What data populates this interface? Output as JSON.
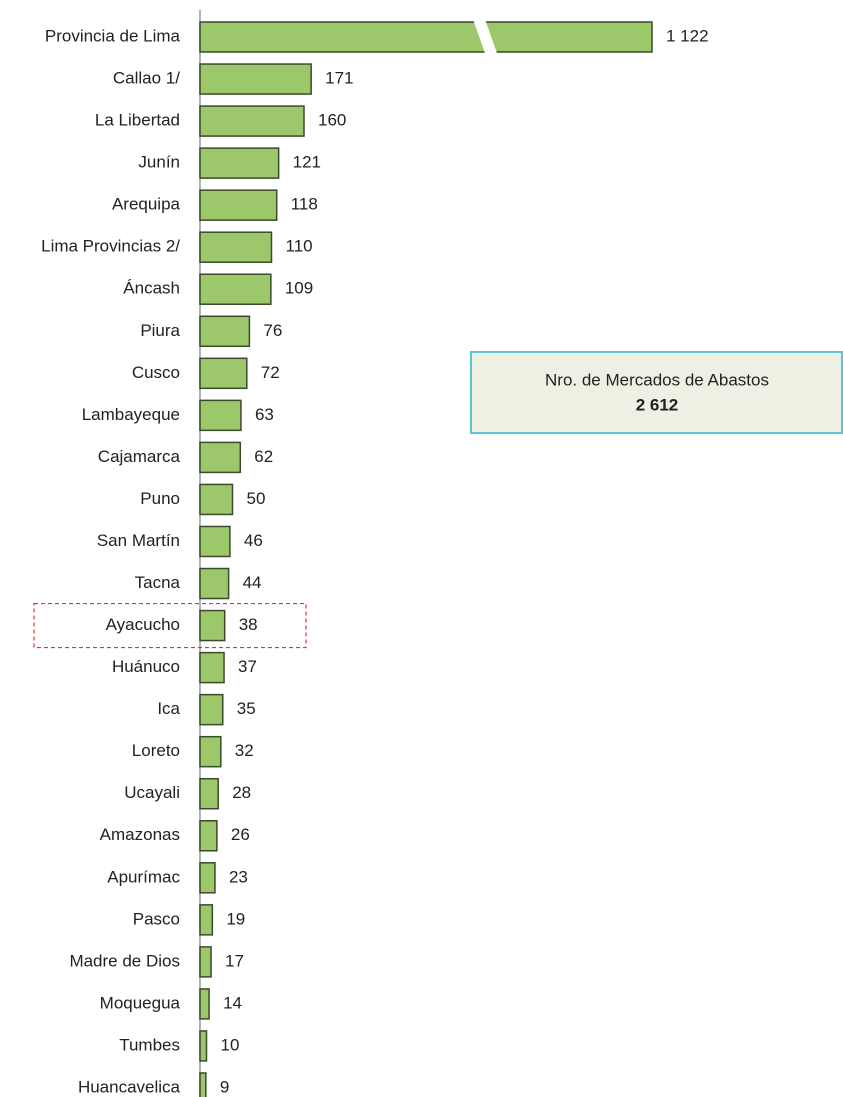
{
  "chart_data": {
    "type": "hbar",
    "categories": [
      "Provincia de Lima",
      "Callao 1/",
      "La Libertad",
      "Junín",
      "Arequipa",
      "Lima Provincias 2/",
      "Áncash",
      "Piura",
      "Cusco",
      "Lambayeque",
      "Cajamarca",
      "Puno",
      "San Martín",
      "Tacna",
      "Ayacucho",
      "Huánuco",
      "Ica",
      "Loreto",
      "Ucayali",
      "Amazonas",
      "Apurímac",
      "Pasco",
      "Madre de Dios",
      "Moquegua",
      "Tumbes",
      "Huancavelica"
    ],
    "values": [
      1122,
      171,
      160,
      121,
      118,
      110,
      109,
      76,
      72,
      63,
      62,
      50,
      46,
      44,
      38,
      37,
      35,
      32,
      28,
      26,
      23,
      19,
      17,
      14,
      10,
      9
    ],
    "value_labels": [
      "1 122",
      "171",
      "160",
      "121",
      "118",
      "110",
      "109",
      "76",
      "72",
      "63",
      "62",
      "50",
      "46",
      "44",
      "38",
      "37",
      "35",
      "32",
      "28",
      "26",
      "23",
      "19",
      "17",
      "14",
      "10",
      "9"
    ],
    "color": "#9cc76b",
    "xlim": [
      0,
      700
    ],
    "axis_break": true,
    "highlight": "Ayacucho",
    "annotation": {
      "text": "Nro. de Mercados de Abastos",
      "total": "2 612"
    }
  }
}
